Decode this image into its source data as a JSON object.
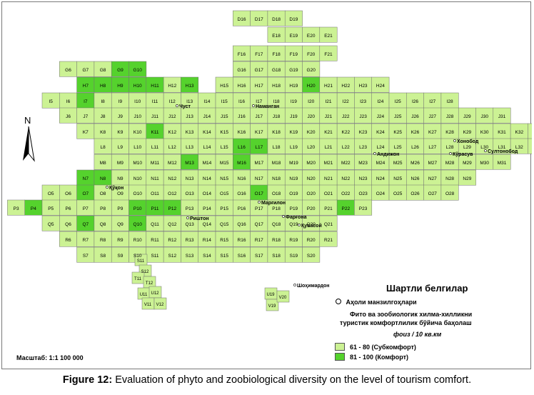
{
  "map": {
    "cities": [
      {
        "name": "Чуст"
      },
      {
        "name": "Наманган"
      },
      {
        "name": "Андижон"
      },
      {
        "name": "Хонобод"
      },
      {
        "name": "Кўрасув"
      },
      {
        "name": "Султонобод"
      },
      {
        "name": "Қўқон"
      },
      {
        "name": "Марғилон"
      },
      {
        "name": "Фарғона"
      },
      {
        "name": "Қувасой"
      },
      {
        "name": "Риштон"
      },
      {
        "name": "Шоҳимардон"
      }
    ],
    "colors": {
      "subcomfort": "#ccf294",
      "comfort": "#55d22d",
      "grid": "#707070"
    }
  },
  "legend": {
    "title": "Шартли белгилар",
    "settlement_label": "Аҳоли манзилгоҳлари",
    "assessment_title_line1": "Фито ва зообиологик хилма-хилликни",
    "assessment_title_line2": "туристик комфортлилик  бўйича баҳолаш",
    "unit": "фоиз / 10 кв.км",
    "items": [
      {
        "label": "61 - 80 (Субкомфорт)",
        "color": "#ccf294"
      },
      {
        "label": "81 - 100 (Комфорт)",
        "color": "#55d22d"
      }
    ]
  },
  "north_label": "N",
  "scale_text": "Масштаб: 1:1 100 000",
  "caption": {
    "label": "Figure 12:",
    "text": " Evaluation of phyto and zoobiological diversity on the level of tourism comfort."
  }
}
